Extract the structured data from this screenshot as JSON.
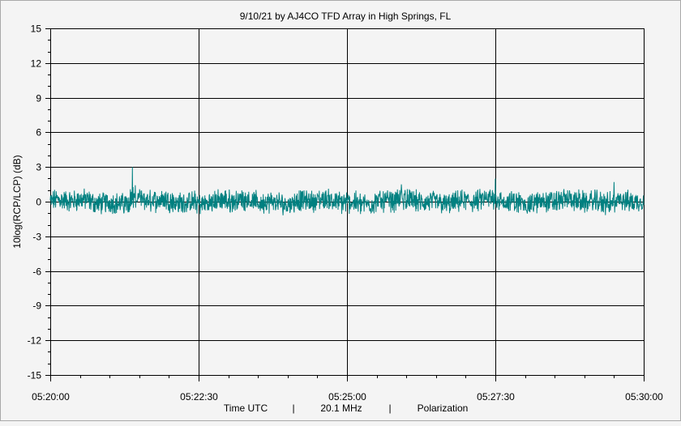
{
  "chart_data": {
    "type": "line",
    "title": "9/10/21  by  AJ4CO TFD Array  in  High Springs, FL",
    "ylabel": "10log(RCP/LCP) (dB)",
    "xlabel_parts": [
      "Time UTC",
      "|",
      "20.1 MHz",
      "|",
      "Polarization"
    ],
    "ylim": [
      -15,
      15
    ],
    "yticks": [
      "15",
      "12",
      "9",
      "6",
      "3",
      "0",
      "-3",
      "-6",
      "-9",
      "-12",
      "-15"
    ],
    "xlim": [
      "05:20:00",
      "05:30:00"
    ],
    "xticks": [
      "05:20:00",
      "05:22:30",
      "05:25:00",
      "05:27:30",
      "05:30:00"
    ],
    "grid": true,
    "series": [
      {
        "color": "#008080",
        "approx_mean_db": 0,
        "approx_range_db": [
          -1.6,
          3.0
        ],
        "notable_points": [
          {
            "time": "05:21:23",
            "value": 3.0
          },
          {
            "time": "05:25:55",
            "value": 1.5
          },
          {
            "time": "05:27:30",
            "value": 2.0
          },
          {
            "time": "05:29:30",
            "value": 1.7
          }
        ]
      }
    ]
  }
}
